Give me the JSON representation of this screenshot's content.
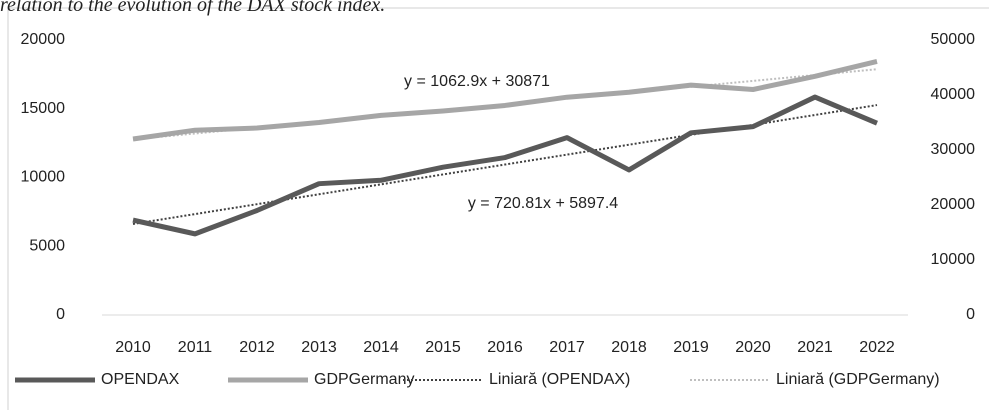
{
  "chart_data": {
    "type": "line",
    "caption": "relation to the evolution of the DAX stock index.",
    "categories": [
      "2010",
      "2011",
      "2012",
      "2013",
      "2014",
      "2015",
      "2016",
      "2017",
      "2018",
      "2019",
      "2020",
      "2021",
      "2022"
    ],
    "series": [
      {
        "name": "OPENDAX",
        "color": "#595959",
        "style": "solid",
        "axis": "y",
        "values": [
          6900,
          5900,
          7600,
          9550,
          9800,
          10750,
          11450,
          12900,
          10550,
          13250,
          13700,
          15850,
          13950
        ]
      },
      {
        "name": "GDPGermany",
        "color": "#a6a6a6",
        "style": "solid",
        "axis": "y2",
        "values": [
          32000,
          33600,
          34000,
          35000,
          36300,
          37100,
          38100,
          39600,
          40500,
          41800,
          41000,
          43400,
          46100
        ]
      },
      {
        "name": "Liniară (OPENDAX)",
        "color": "#404040",
        "style": "dotted",
        "axis": "y",
        "values": [
          6618.2,
          7339.0,
          8059.8,
          8780.6,
          9501.5,
          10222.3,
          10943.1,
          11663.9,
          12384.7,
          13105.5,
          13826.3,
          14547.1,
          15267.9
        ]
      },
      {
        "name": "Liniară (GDPGermany)",
        "color": "#bfbfbf",
        "style": "dotted",
        "axis": "y2",
        "values": [
          31933.9,
          32996.8,
          34059.7,
          35122.6,
          36185.5,
          37248.4,
          38311.3,
          39374.2,
          40437.1,
          41500.0,
          42562.9,
          43625.8,
          44688.7
        ]
      }
    ],
    "annotations": [
      "y = 1062.9x + 30871",
      "y = 720.81x + 5897.4"
    ],
    "ylim": [
      0,
      20000
    ],
    "yticks": [
      0,
      5000,
      10000,
      15000,
      20000
    ],
    "y2lim": [
      0,
      50000
    ],
    "y2ticks": [
      0,
      10000,
      20000,
      30000,
      40000,
      50000
    ],
    "legend": "bottom"
  }
}
